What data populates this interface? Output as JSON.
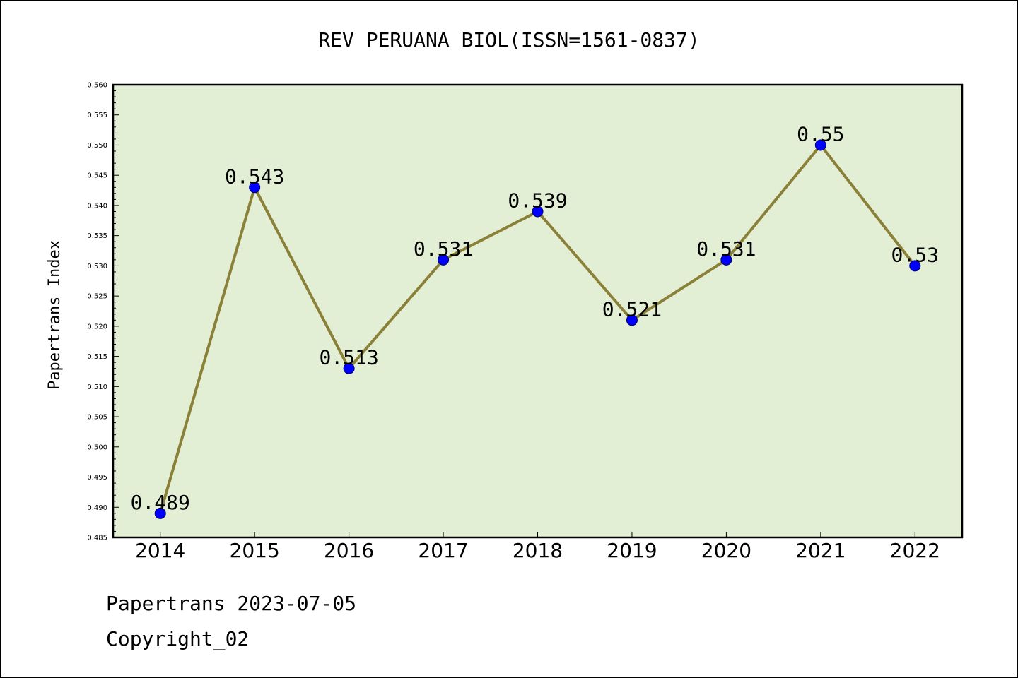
{
  "chart_data": {
    "type": "line",
    "title": "REV PERUANA BIOL(ISSN=1561-0837)",
    "xlabel": "",
    "ylabel": "Papertrans Index",
    "categories": [
      "2014",
      "2015",
      "2016",
      "2017",
      "2018",
      "2019",
      "2020",
      "2021",
      "2022"
    ],
    "series": [
      {
        "values": [
          0.489,
          0.543,
          0.513,
          0.531,
          0.539,
          0.521,
          0.531,
          0.55,
          0.53
        ],
        "labels": [
          "0.489",
          "0.543",
          "0.513",
          "0.531",
          "0.539",
          "0.521",
          "0.531",
          "0.55",
          "0.53"
        ]
      }
    ],
    "ylim": [
      0.485,
      0.56
    ],
    "yticks": [
      "0.485",
      "0.490",
      "0.495",
      "0.500",
      "0.505",
      "0.510",
      "0.515",
      "0.520",
      "0.525",
      "0.530",
      "0.535",
      "0.540",
      "0.545",
      "0.550",
      "0.555",
      "0.560"
    ],
    "grid": false,
    "colors": {
      "plot_background": "#e2efd4",
      "line": "#8b8038",
      "marker": "#0000ff"
    }
  },
  "footer": {
    "date_line": "Papertrans 2023-07-05",
    "copyright": "Copyright_02"
  }
}
